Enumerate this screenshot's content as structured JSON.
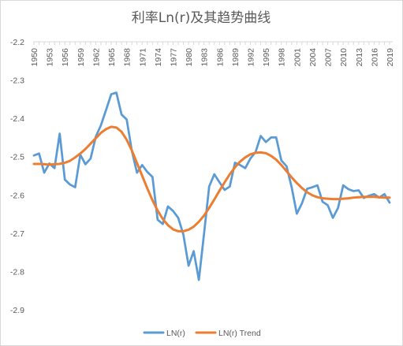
{
  "chart_data": {
    "type": "line",
    "title": "利率Ln(r)及其趋势曲线",
    "xlabel": "",
    "ylabel": "",
    "ylim": [
      -2.9,
      -2.2
    ],
    "y_ticks": [
      "-2.2",
      "-2.3",
      "-2.4",
      "-2.5",
      "-2.6",
      "-2.7",
      "-2.8",
      "-2.9"
    ],
    "x_tick_labels": [
      "1950",
      "1953",
      "1956",
      "1959",
      "1962",
      "1965",
      "1968",
      "1971",
      "1974",
      "1977",
      "1980",
      "1983",
      "1986",
      "1989",
      "1992",
      "1995",
      "1998",
      "2001",
      "2004",
      "2007",
      "2010",
      "2013",
      "2016",
      "2019"
    ],
    "grid": false,
    "legend_position": "bottom",
    "x": [
      1950,
      1951,
      1952,
      1953,
      1954,
      1955,
      1956,
      1957,
      1958,
      1959,
      1960,
      1961,
      1962,
      1963,
      1964,
      1965,
      1966,
      1967,
      1968,
      1969,
      1970,
      1971,
      1972,
      1973,
      1974,
      1975,
      1976,
      1977,
      1978,
      1979,
      1980,
      1981,
      1982,
      1983,
      1984,
      1985,
      1986,
      1987,
      1988,
      1989,
      1990,
      1991,
      1992,
      1993,
      1994,
      1995,
      1996,
      1997,
      1998,
      1999,
      2000,
      2001,
      2002,
      2003,
      2004,
      2005,
      2006,
      2007,
      2008,
      2009,
      2010,
      2011,
      2012,
      2013,
      2014,
      2015,
      2016,
      2017,
      2018,
      2019
    ],
    "series": [
      {
        "name": "LN(r)",
        "color": "#5b9bd5",
        "values": [
          -2.497,
          -2.492,
          -2.542,
          -2.518,
          -2.53,
          -2.44,
          -2.56,
          -2.573,
          -2.58,
          -2.495,
          -2.52,
          -2.505,
          -2.448,
          -2.418,
          -2.378,
          -2.337,
          -2.333,
          -2.39,
          -2.403,
          -2.485,
          -2.542,
          -2.522,
          -2.54,
          -2.553,
          -2.665,
          -2.676,
          -2.63,
          -2.642,
          -2.66,
          -2.704,
          -2.785,
          -2.747,
          -2.822,
          -2.702,
          -2.578,
          -2.546,
          -2.567,
          -2.587,
          -2.578,
          -2.516,
          -2.522,
          -2.53,
          -2.505,
          -2.488,
          -2.446,
          -2.462,
          -2.45,
          -2.45,
          -2.51,
          -2.525,
          -2.58,
          -2.649,
          -2.622,
          -2.584,
          -2.58,
          -2.575,
          -2.618,
          -2.627,
          -2.66,
          -2.634,
          -2.575,
          -2.585,
          -2.59,
          -2.588,
          -2.608,
          -2.602,
          -2.598,
          -2.607,
          -2.598,
          -2.62
        ]
      },
      {
        "name": "LN(r) Trend",
        "color": "#ed7d31",
        "values": [
          -2.519,
          -2.519,
          -2.52,
          -2.521,
          -2.52,
          -2.519,
          -2.516,
          -2.511,
          -2.502,
          -2.492,
          -2.48,
          -2.466,
          -2.452,
          -2.438,
          -2.428,
          -2.422,
          -2.424,
          -2.435,
          -2.456,
          -2.484,
          -2.517,
          -2.55,
          -2.583,
          -2.614,
          -2.641,
          -2.663,
          -2.679,
          -2.69,
          -2.695,
          -2.695,
          -2.691,
          -2.683,
          -2.67,
          -2.654,
          -2.634,
          -2.612,
          -2.589,
          -2.567,
          -2.546,
          -2.528,
          -2.513,
          -2.502,
          -2.494,
          -2.49,
          -2.489,
          -2.491,
          -2.498,
          -2.508,
          -2.522,
          -2.538,
          -2.554,
          -2.569,
          -2.582,
          -2.593,
          -2.601,
          -2.606,
          -2.609,
          -2.61,
          -2.611,
          -2.611,
          -2.61,
          -2.609,
          -2.607,
          -2.606,
          -2.605,
          -2.605,
          -2.605,
          -2.606,
          -2.607,
          -2.607
        ]
      }
    ]
  }
}
